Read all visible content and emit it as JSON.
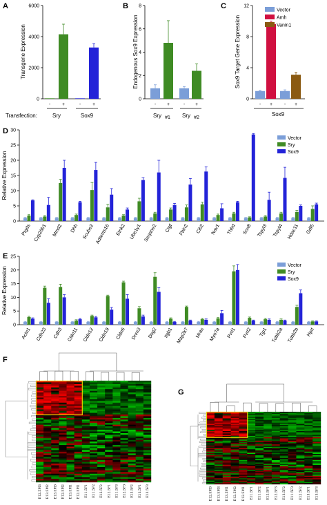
{
  "panels": {
    "A": "A",
    "B": "B",
    "C": "C",
    "D": "D",
    "E": "E",
    "F": "F",
    "G": "G"
  },
  "colors": {
    "vector": "#7b9ed8",
    "sry": "#3f8b24",
    "sox9": "#2323d8",
    "amh": "#d01040",
    "vanin1": "#8b5a12",
    "hm_high": "#ff0000",
    "hm_low": "#00ff00",
    "highlight": "#e8d000"
  },
  "chart_data": [
    {
      "id": "A",
      "type": "bar",
      "ylabel": "Transgene Expression",
      "yticks": [
        0,
        2000,
        4000,
        6000
      ],
      "ylim": [
        0,
        6000
      ],
      "xrow_label": "Transfection:",
      "groups": [
        "Sry",
        "Sox9"
      ],
      "signs": [
        "-",
        "+",
        "-",
        "+"
      ],
      "bars": [
        {
          "group": "Sry",
          "sign": "-",
          "value": 30,
          "err": 0,
          "color": "sry"
        },
        {
          "group": "Sry",
          "sign": "+",
          "value": 4150,
          "err": 650,
          "color": "sry"
        },
        {
          "group": "Sox9",
          "sign": "-",
          "value": 30,
          "err": 0,
          "color": "sox9"
        },
        {
          "group": "Sox9",
          "sign": "+",
          "value": 3300,
          "err": 250,
          "color": "sox9"
        }
      ]
    },
    {
      "id": "B",
      "type": "bar",
      "ylabel": "Endogenous Sox9 Expression",
      "yticks": [
        0,
        2,
        4,
        6,
        8
      ],
      "ylim": [
        0,
        8
      ],
      "groups": [
        "Sry #1",
        "Sry #2"
      ],
      "group_main": [
        "Sry",
        "Sry"
      ],
      "group_sub": [
        "#1",
        "#2"
      ],
      "signs": [
        "-",
        "+",
        "-",
        "+"
      ],
      "bars": [
        {
          "group": "Sry #1",
          "sign": "-",
          "value": 0.9,
          "err": 0.3,
          "color": "vector"
        },
        {
          "group": "Sry #1",
          "sign": "+",
          "value": 4.8,
          "err": 1.9,
          "color": "sry"
        },
        {
          "group": "Sry #2",
          "sign": "-",
          "value": 0.9,
          "err": 0.15,
          "color": "vector"
        },
        {
          "group": "Sry #2",
          "sign": "+",
          "value": 2.4,
          "err": 0.6,
          "color": "sry"
        }
      ]
    },
    {
      "id": "C",
      "type": "bar",
      "ylabel": "Sox9 Target Gene Expression",
      "yticks": [
        0,
        4,
        8,
        12
      ],
      "ylim": [
        0,
        12
      ],
      "xgroup": "Sox9",
      "signs": [
        "-",
        "+",
        "-",
        "+"
      ],
      "legend": [
        "Vector",
        "Amh",
        "Vanin1"
      ],
      "legend_placement": "top-right",
      "bars": [
        {
          "sign": "-",
          "value": 1.0,
          "err": 0.1,
          "color": "vector"
        },
        {
          "sign": "+",
          "value": 9.6,
          "err": 0.4,
          "color": "amh"
        },
        {
          "sign": "-",
          "value": 1.0,
          "err": 0.15,
          "color": "vector"
        },
        {
          "sign": "+",
          "value": 3.1,
          "err": 0.3,
          "color": "vanin1"
        }
      ]
    },
    {
      "id": "D",
      "type": "bar",
      "ylabel": "Relative Expression",
      "yticks": [
        0,
        5,
        10,
        15,
        20,
        25,
        30
      ],
      "ylim": [
        0,
        30
      ],
      "legend_placement": "top-right",
      "categories": [
        "Ptgds",
        "Cyp26b1",
        "Mmd2",
        "Dhh",
        "Scube2",
        "Adamts16",
        "Etnk2",
        "Ube1y1",
        "Serpine2",
        "Ctgf",
        "Fbln2",
        "Cib2",
        "Nav1",
        "Thbd",
        "Sox8",
        "Tspyl3",
        "Tspyl4",
        "Hdac11",
        "Gdf5"
      ],
      "series": [
        {
          "name": "Vector",
          "color": "vector",
          "values": [
            1,
            1,
            1,
            1,
            1,
            1,
            1,
            1,
            1,
            1,
            1,
            1,
            1,
            1,
            1,
            1,
            1,
            1,
            1
          ],
          "err": [
            0.2,
            0.2,
            0.2,
            0.2,
            0.2,
            0.2,
            0.2,
            0.2,
            0.2,
            0.2,
            0.2,
            0.2,
            0.2,
            0.2,
            0.2,
            0.2,
            0.2,
            0.2,
            0.2
          ]
        },
        {
          "name": "Sry",
          "color": "sry",
          "values": [
            1.8,
            1.5,
            12.5,
            2.0,
            10.2,
            4.5,
            1.8,
            6.5,
            2.5,
            3.8,
            4.5,
            5.5,
            2.0,
            2.5,
            1.2,
            1.5,
            2.5,
            3.0,
            4.0
          ],
          "err": [
            0.3,
            0.3,
            1.2,
            0.3,
            2.5,
            1.0,
            0.3,
            1.0,
            0.4,
            0.5,
            0.8,
            0.7,
            0.3,
            0.4,
            0.2,
            0.3,
            0.4,
            0.5,
            1.0
          ]
        },
        {
          "name": "Sox9",
          "color": "sox9",
          "values": [
            6.8,
            5.3,
            17.5,
            6.2,
            16.8,
            8.7,
            3.8,
            13.5,
            16.0,
            5.3,
            12.0,
            16.3,
            4.2,
            6.2,
            28.5,
            7.0,
            14.2,
            5.0,
            5.5
          ],
          "err": [
            0.2,
            2.5,
            2.5,
            0.3,
            2.5,
            2.0,
            0.5,
            0.8,
            4.0,
            0.5,
            2.0,
            1.5,
            1.5,
            0.3,
            0.3,
            2.5,
            3.5,
            0.3,
            0.4
          ]
        }
      ]
    },
    {
      "id": "E",
      "type": "bar",
      "ylabel": "Relative Expression",
      "yticks": [
        0,
        5,
        10,
        15,
        20,
        25
      ],
      "ylim": [
        0,
        25
      ],
      "legend_placement": "top-right",
      "categories": [
        "Actn1",
        "Cdh23",
        "Cdh3",
        "Cldn11",
        "Cldn12",
        "Cldn19",
        "Cldn6",
        "Dnm3",
        "Dsg2",
        "Itgb1",
        "Map2k7",
        "Mras",
        "Myo7a",
        "Pvrl1",
        "Pvrl2",
        "Tjp1",
        "Tubb2a",
        "Tubb2b",
        "Hprt"
      ],
      "series": [
        {
          "name": "Vector",
          "color": "vector",
          "values": [
            1,
            1,
            1,
            1,
            1,
            1,
            1,
            1,
            1,
            1,
            1,
            1,
            1,
            1,
            1,
            1,
            1,
            1,
            1
          ],
          "err": [
            0.2,
            0.2,
            0.2,
            0.2,
            0.2,
            0.2,
            0.2,
            0.2,
            0.2,
            0.2,
            0.2,
            0.2,
            0.2,
            0.2,
            0.2,
            0.2,
            0.2,
            0.2,
            0.2
          ]
        },
        {
          "name": "Sry",
          "color": "sry",
          "values": [
            2.8,
            13.5,
            13.8,
            1.5,
            3.2,
            10.5,
            15.5,
            6.0,
            17.5,
            2.2,
            6.5,
            2.0,
            2.3,
            19.5,
            2.5,
            2.0,
            1.8,
            6.5,
            1.2
          ],
          "err": [
            0.3,
            0.6,
            1.0,
            0.3,
            0.3,
            0.3,
            0.4,
            0.6,
            1.5,
            0.3,
            0.3,
            0.3,
            0.3,
            2.0,
            0.3,
            0.3,
            0.3,
            0.6,
            0.2
          ]
        },
        {
          "name": "Sox9",
          "color": "sox9",
          "values": [
            2.2,
            8.0,
            10.0,
            2.0,
            2.7,
            5.5,
            9.5,
            3.0,
            12.0,
            1.0,
            1.5,
            1.8,
            4.2,
            20.0,
            1.5,
            1.8,
            1.5,
            11.5,
            1.2
          ],
          "err": [
            0.3,
            1.5,
            1.0,
            0.3,
            0.3,
            0.8,
            1.5,
            0.5,
            1.5,
            0.2,
            0.2,
            0.3,
            1.0,
            2.0,
            0.2,
            0.3,
            0.2,
            1.2,
            0.2
          ]
        }
      ]
    },
    {
      "id": "F",
      "type": "heatmap",
      "rows": 60,
      "columns": [
        "E12.5M3",
        "E13.5M2",
        "E13.5M3",
        "E12.5M2",
        "E13.5M1",
        "E12.5M1",
        "E11.5F1",
        "E11.5F2",
        "E12.5F2",
        "E12.5F1",
        "E11.5F3",
        "E12.5F3",
        "E13.5F2",
        "E13.5F1",
        "E13.5F3"
      ],
      "highlight_block": "E12.5M3 to E12.5M1, upper third of rows"
    },
    {
      "id": "G",
      "type": "heatmap",
      "rows": 60,
      "columns": [
        "E12.5M3",
        "E13.5M3",
        "E13.5M1",
        "E12.5M2",
        "E12.5M1",
        "E11.5F1",
        "E11.5F2",
        "E12.5F1",
        "E12.5F3",
        "E13.5F2",
        "E11.5F3",
        "E12.5F2",
        "E13.5F1",
        "E13.5F3"
      ],
      "highlight_block": "E12.5M3 to E12.5M1, upper third of rows"
    }
  ]
}
